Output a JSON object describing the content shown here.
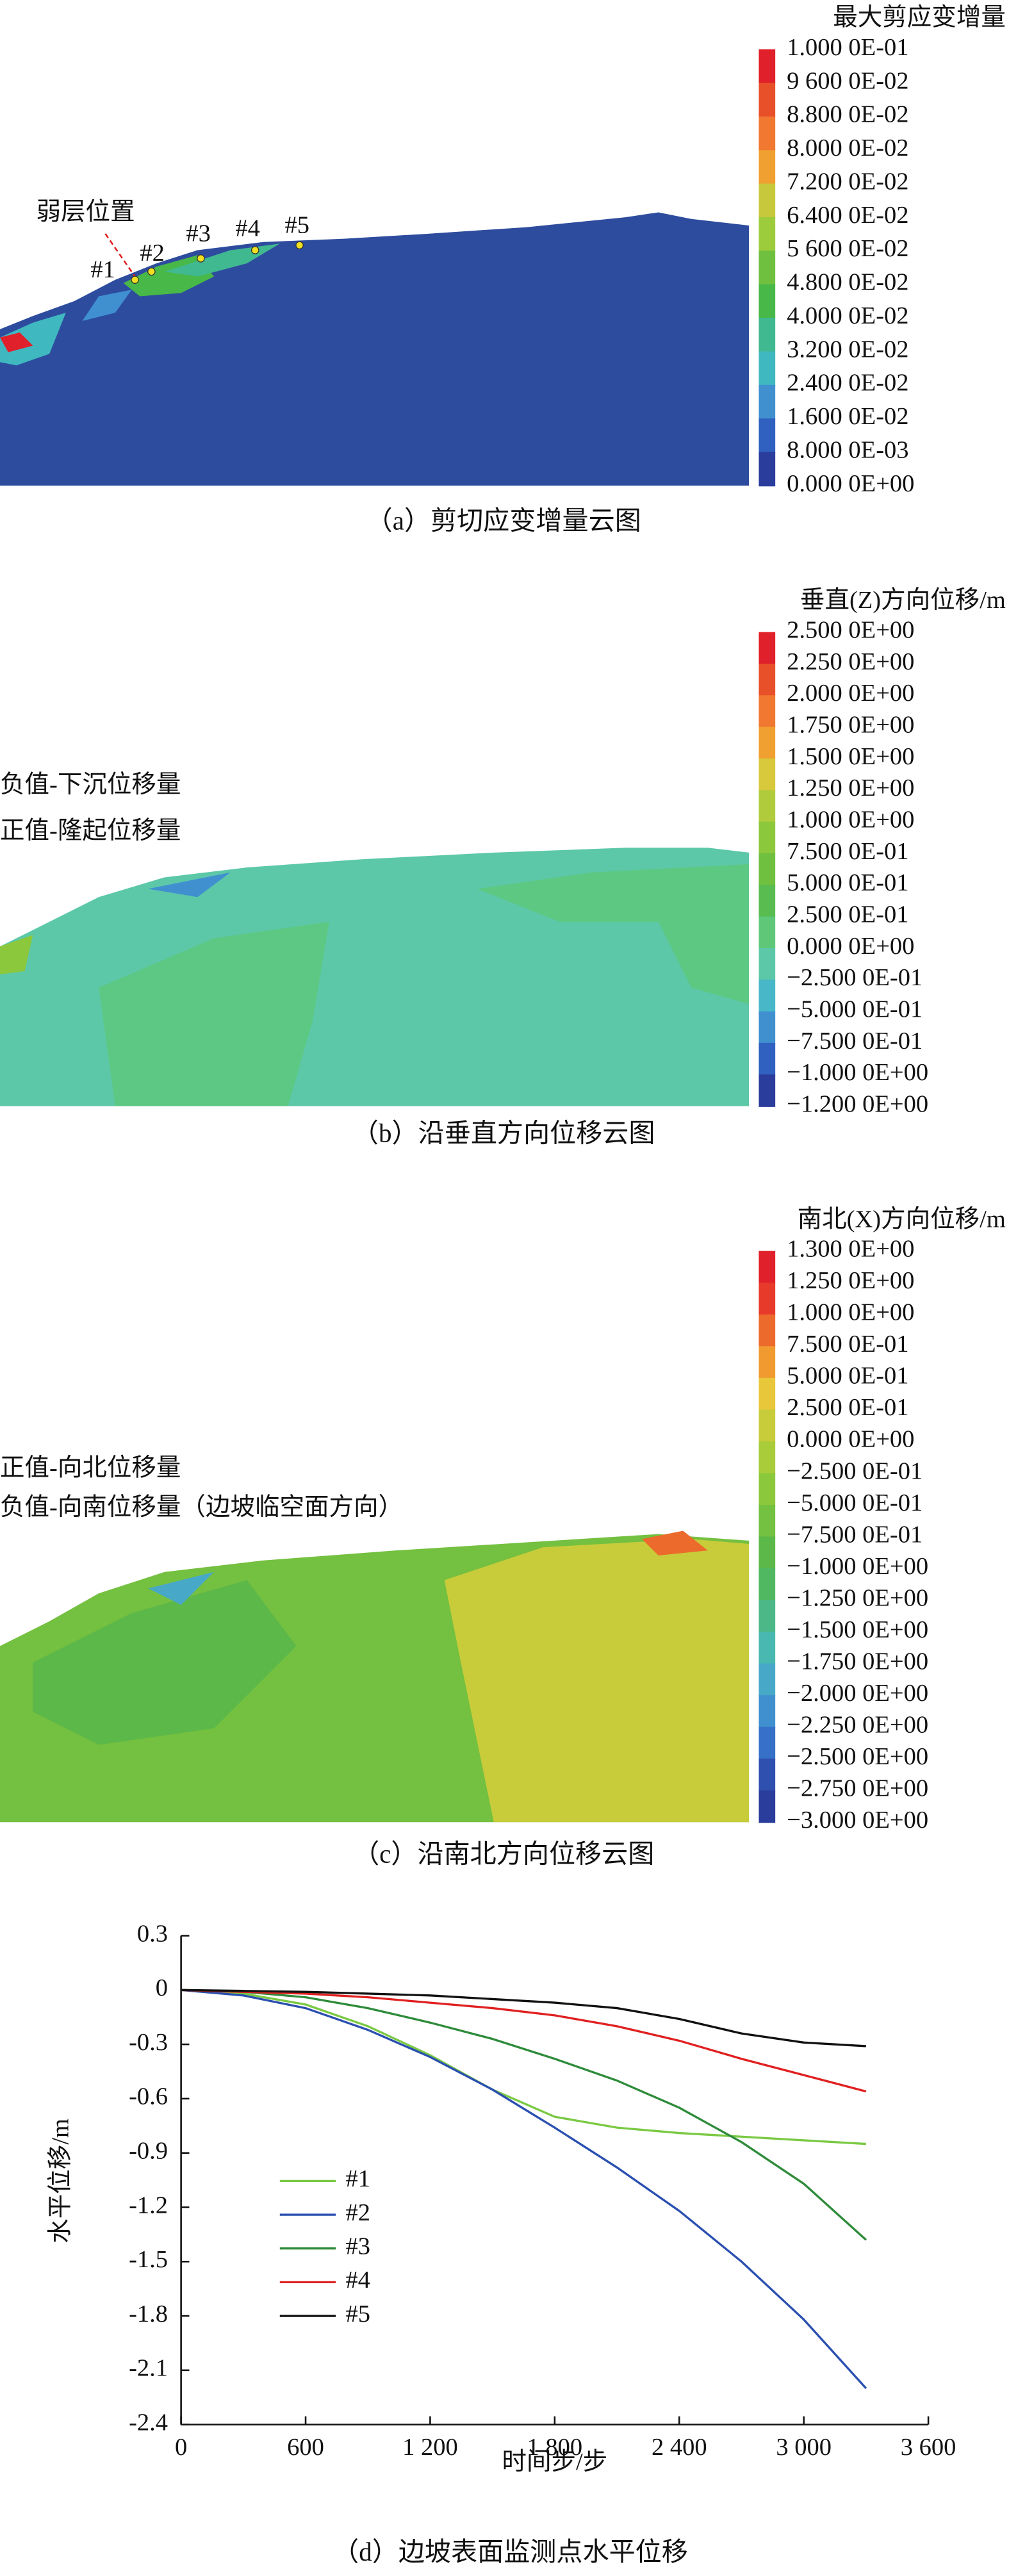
{
  "panels": [
    {
      "legend_title": "最大剪应变增量",
      "legend_labels": [
        "1.000 0E-01",
        "9 600 0E-02",
        "8.800 0E-02",
        "8.000 0E-02",
        "7.200 0E-02",
        "6.400 0E-02",
        "5 600 0E-02",
        "4.800 0E-02",
        "4.000 0E-02",
        "3.200 0E-02",
        "2.400 0E-02",
        "1.600 0E-02",
        "8.000 0E-03",
        "0.000 0E+00"
      ],
      "colors": [
        "#e0202a",
        "#e8502a",
        "#f07830",
        "#f0a030",
        "#c8c83c",
        "#9ccc3c",
        "#70c040",
        "#48b848",
        "#40b890",
        "#40b8c0",
        "#4090d0",
        "#3060c0",
        "#2a3c9c"
      ],
      "annotations": [
        "弱层位置",
        "#1",
        "#2",
        "#3",
        "#4",
        "#5"
      ],
      "caption": "（a）剪切应变增量云图"
    },
    {
      "legend_title": "垂直(Z)方向位移/m",
      "legend_labels": [
        "2.500 0E+00",
        "2.250 0E+00",
        "2.000 0E+00",
        "1.750 0E+00",
        "1.500 0E+00",
        "1.250 0E+00",
        "1.000 0E+00",
        "7.500 0E-01",
        "5.000 0E-01",
        "2.500 0E-01",
        "0.000 0E+00",
        "−2.500 0E-01",
        "−5.000 0E-01",
        "−7.500 0E-01",
        "−1.000 0E+00",
        "−1.200 0E+00"
      ],
      "colors": [
        "#e0202a",
        "#e8502a",
        "#f07830",
        "#f0a030",
        "#d8c83c",
        "#b0cc3c",
        "#8cc83c",
        "#70c040",
        "#58bc50",
        "#5ec878",
        "#5cc8a8",
        "#48b8c8",
        "#4090d0",
        "#3060c0",
        "#2a3c9c"
      ],
      "annotations": [
        "负值-下沉位移量",
        "正值-隆起位移量"
      ],
      "caption": "（b）沿垂直方向位移云图"
    },
    {
      "legend_title": "南北(X)方向位移/m",
      "legend_labels": [
        "1.300 0E+00",
        "1.250 0E+00",
        "1.000 0E+00",
        "7.500 0E-01",
        "5.000 0E-01",
        "2.500 0E-01",
        "0.000 0E+00",
        "−2.500 0E-01",
        "−5.000 0E-01",
        "−7.500 0E-01",
        "−1.000 0E+00",
        "−1.250 0E+00",
        "−1.500 0E+00",
        "−1.750 0E+00",
        "−2.000 0E+00",
        "−2.250 0E+00",
        "−2.500 0E+00",
        "−2.750 0E+00",
        "−3.000 0E+00"
      ],
      "colors": [
        "#e0202a",
        "#e83a2a",
        "#ec6a2c",
        "#f09a30",
        "#e8c83a",
        "#c8cc3a",
        "#a8cc3a",
        "#8cc83c",
        "#74c040",
        "#5cb848",
        "#50b860",
        "#4cb888",
        "#48b8b0",
        "#48a8c8",
        "#4090d0",
        "#3670c8",
        "#3050b0",
        "#2a3c9c"
      ],
      "annotations": [
        "正值-向北位移量",
        "负值-向南位移量（边坡临空面方向）"
      ],
      "caption": "（c）沿南北方向位移云图"
    }
  ],
  "chart_data": {
    "type": "line",
    "caption": "（d）边坡表面监测点水平位移",
    "x_label": "时间步/步",
    "y_label": "水平位移/m",
    "x": [
      0,
      300,
      600,
      900,
      1200,
      1500,
      1800,
      2100,
      2400,
      2700,
      3000,
      3300
    ],
    "series": [
      {
        "name": "#1",
        "color": "#7ac943",
        "values": [
          0,
          -0.02,
          -0.08,
          -0.2,
          -0.36,
          -0.55,
          -0.7,
          -0.76,
          -0.79,
          -0.81,
          -0.83,
          -0.85
        ]
      },
      {
        "name": "#2",
        "color": "#2a4fb0",
        "values": [
          0,
          -0.03,
          -0.1,
          -0.22,
          -0.37,
          -0.55,
          -0.76,
          -0.98,
          -1.22,
          -1.5,
          -1.82,
          -2.2
        ]
      },
      {
        "name": "#3",
        "color": "#2e8b3a",
        "values": [
          0,
          -0.01,
          -0.04,
          -0.1,
          -0.18,
          -0.27,
          -0.38,
          -0.5,
          -0.65,
          -0.84,
          -1.07,
          -1.38
        ]
      },
      {
        "name": "#4",
        "color": "#e02020",
        "values": [
          0,
          -0.01,
          -0.02,
          -0.04,
          -0.07,
          -0.1,
          -0.14,
          -0.2,
          -0.28,
          -0.38,
          -0.47,
          -0.56
        ]
      },
      {
        "name": "#5",
        "color": "#111111",
        "values": [
          0,
          -0.005,
          -0.01,
          -0.02,
          -0.03,
          -0.05,
          -0.07,
          -0.1,
          -0.16,
          -0.24,
          -0.29,
          -0.31
        ]
      }
    ],
    "xlim": [
      0,
      3600
    ],
    "xticks": [
      0,
      600,
      {
        "value": 1200,
        "label": "1 200"
      },
      {
        "value": 1800,
        "label": "1 800"
      },
      {
        "value": 2400,
        "label": "2 400"
      },
      {
        "value": 3000,
        "label": "3 000"
      },
      {
        "value": 3600,
        "label": "3 600"
      }
    ],
    "ylim": [
      -2.4,
      0.3
    ],
    "yticks": [
      0.3,
      0,
      -0.3,
      -0.6,
      -0.9,
      -1.2,
      -1.5,
      -1.8,
      -2.1,
      -2.4
    ],
    "grid": false,
    "legend": "lower left"
  }
}
